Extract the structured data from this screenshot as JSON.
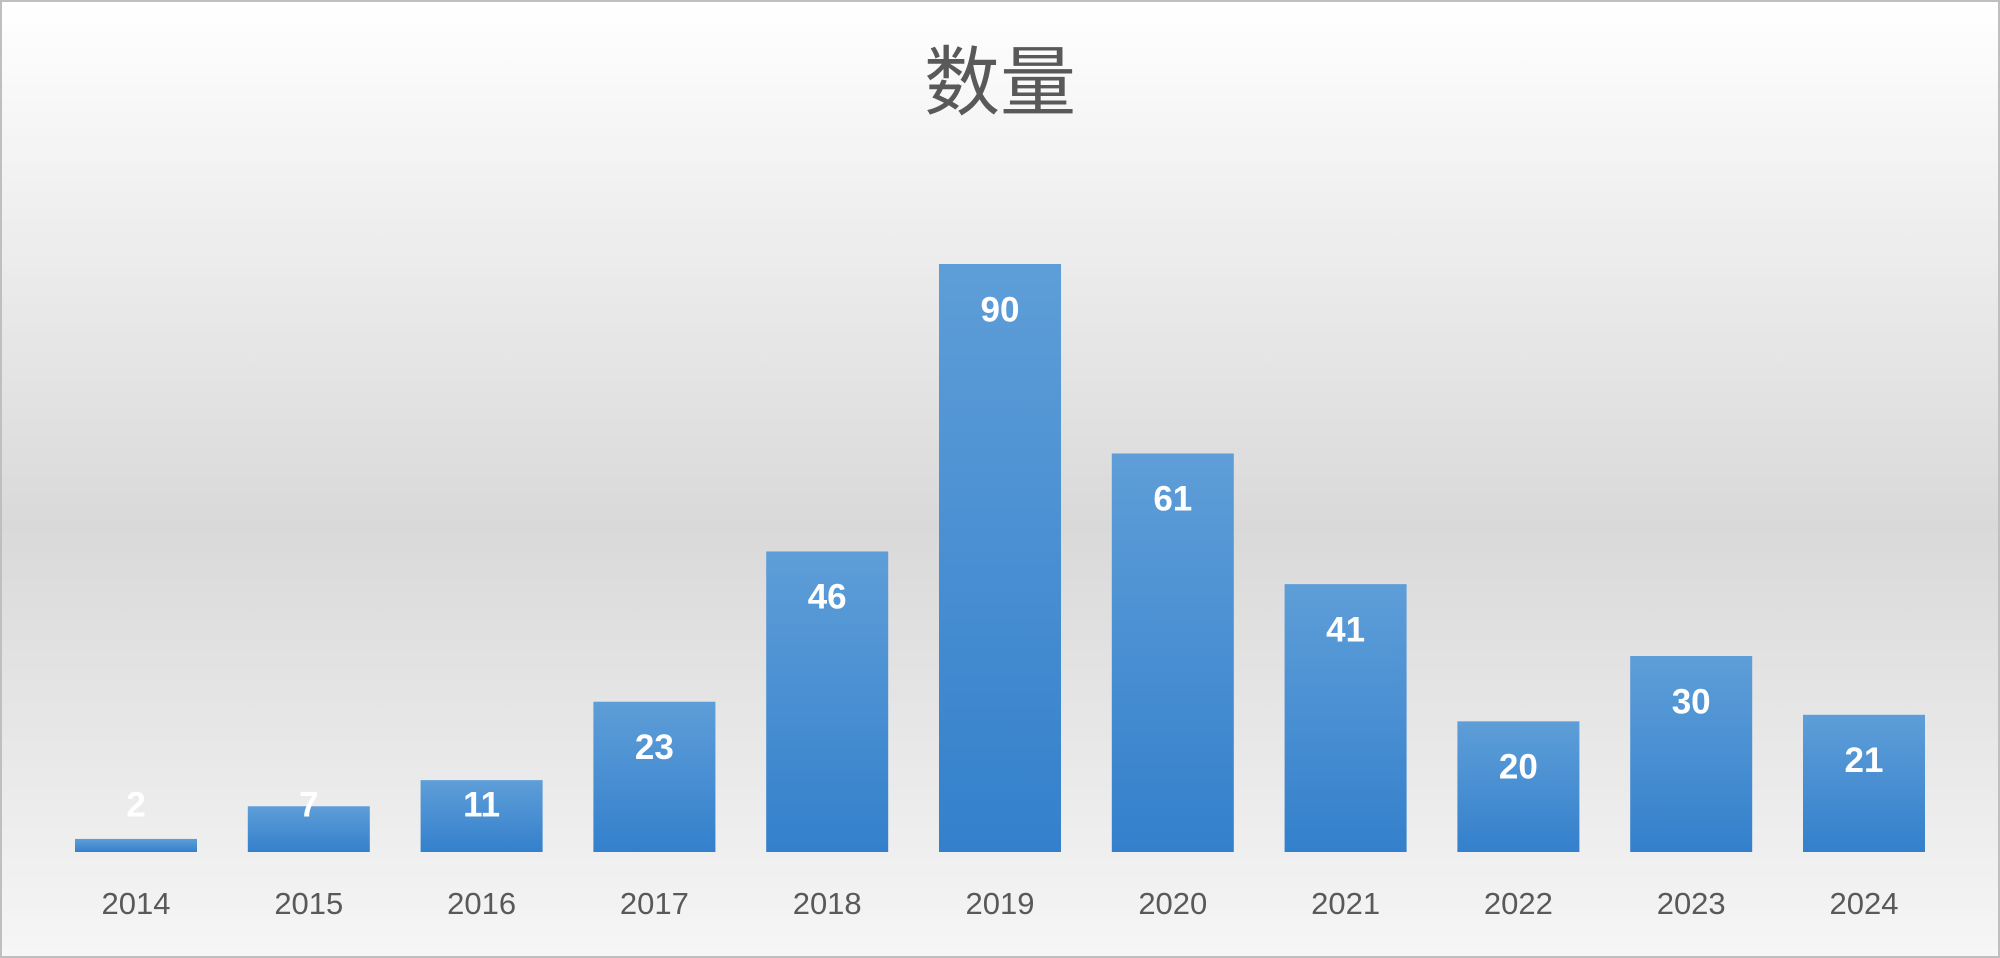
{
  "chart_data": {
    "type": "bar",
    "title": "数量",
    "categories": [
      "2014",
      "2015",
      "2016",
      "2017",
      "2018",
      "2019",
      "2020",
      "2021",
      "2022",
      "2023",
      "2024"
    ],
    "values": [
      2,
      7,
      11,
      23,
      46,
      90,
      61,
      41,
      20,
      30,
      21
    ],
    "color": "#4a8fd6",
    "data_labels": true
  }
}
